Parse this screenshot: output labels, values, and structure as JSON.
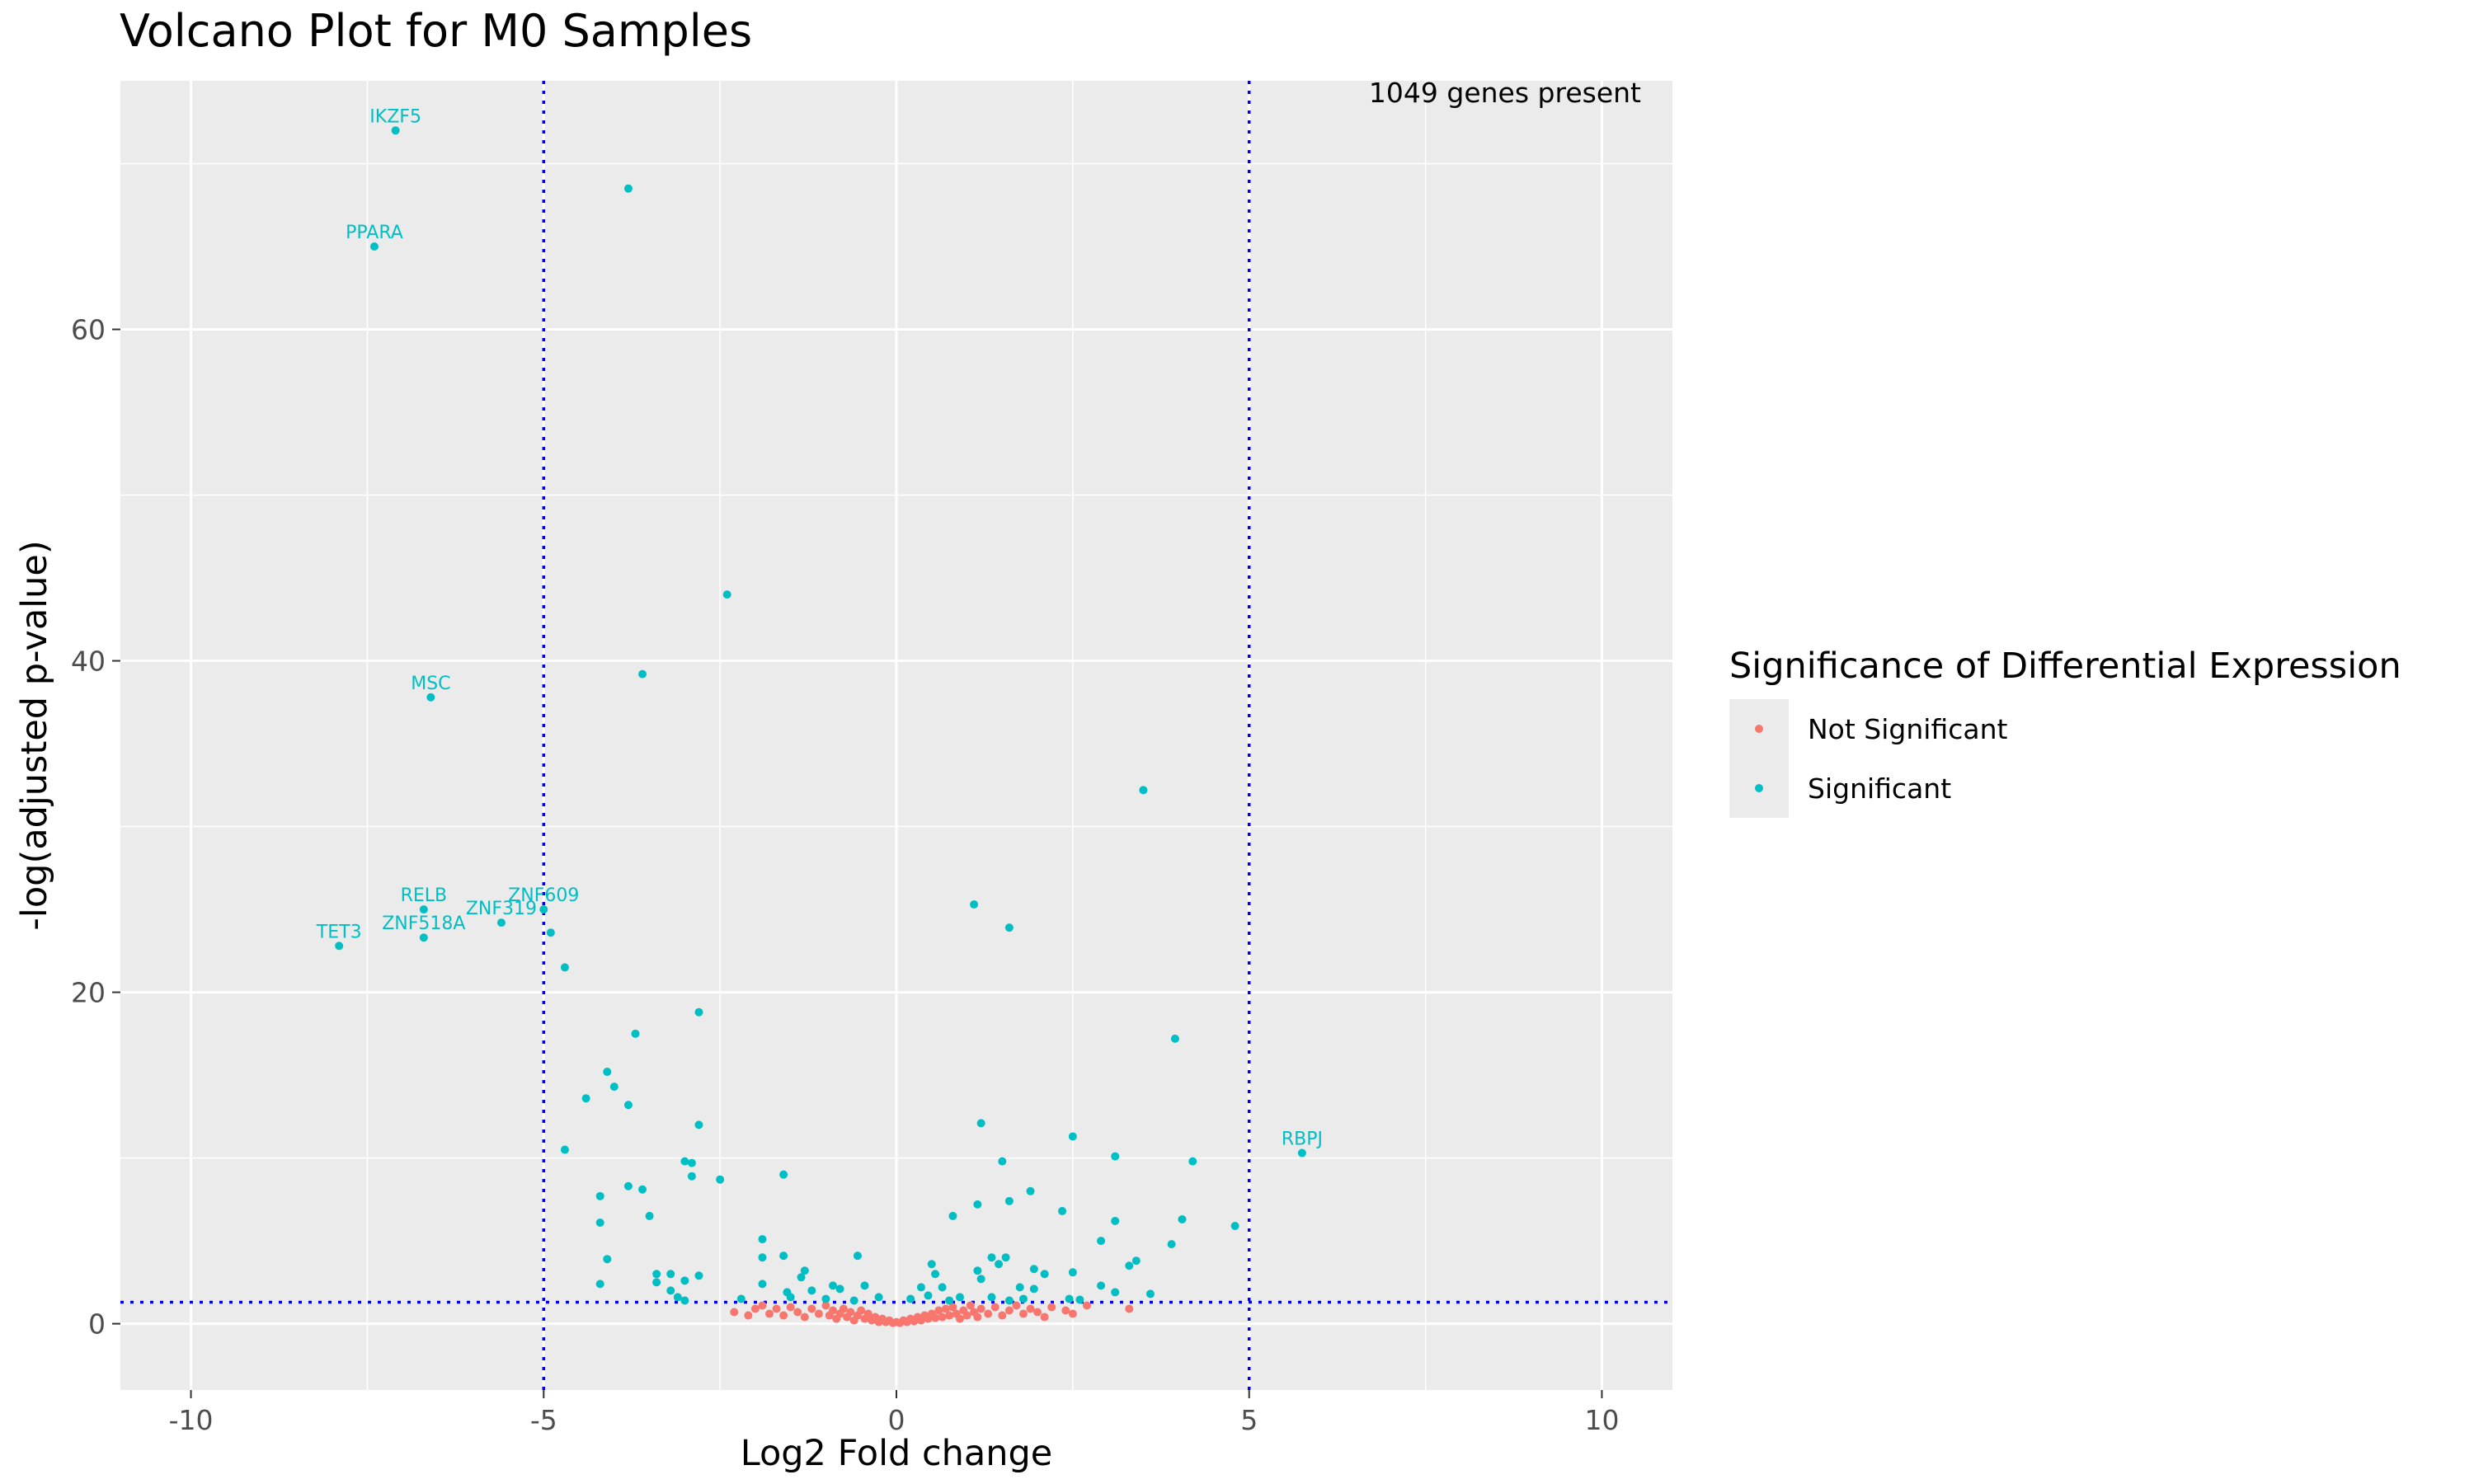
{
  "chart_data": {
    "type": "scatter",
    "title": "Volcano Plot for M0 Samples",
    "xlabel": "Log2 Fold change",
    "ylabel": "-log(adjusted p-value)",
    "xlim": [
      -11,
      11
    ],
    "ylim": [
      -4,
      75
    ],
    "x_ticks": [
      -10,
      -5,
      0,
      5,
      10
    ],
    "y_ticks": [
      0,
      20,
      40,
      60
    ],
    "grid": true,
    "panel_background": "#ebebeb",
    "annotation": "1049 genes present",
    "thresholds": {
      "x": [
        -5,
        5
      ],
      "y": 1.3,
      "color": "#0000ee",
      "style": "dotted"
    },
    "legend": {
      "title": "Significance of Differential Expression",
      "position": "right",
      "items": [
        {
          "label": "Not Significant",
          "color": "#f8766d"
        },
        {
          "label": "Significant",
          "color": "#00bfc4"
        }
      ]
    },
    "series": [
      {
        "name": "Not Significant",
        "color": "#f8766d",
        "points": [
          [
            -2.3,
            0.7
          ],
          [
            -2.1,
            0.5
          ],
          [
            -2.0,
            0.9
          ],
          [
            -1.9,
            1.1
          ],
          [
            -1.8,
            0.6
          ],
          [
            -1.7,
            0.9
          ],
          [
            -1.6,
            0.5
          ],
          [
            -1.5,
            1.0
          ],
          [
            -1.4,
            0.7
          ],
          [
            -1.3,
            0.4
          ],
          [
            -1.2,
            0.9
          ],
          [
            -1.1,
            0.6
          ],
          [
            -1.0,
            1.1
          ],
          [
            -0.95,
            0.5
          ],
          [
            -0.9,
            0.8
          ],
          [
            -0.85,
            0.3
          ],
          [
            -0.8,
            0.6
          ],
          [
            -0.75,
            0.9
          ],
          [
            -0.7,
            0.4
          ],
          [
            -0.65,
            0.7
          ],
          [
            -0.6,
            0.2
          ],
          [
            -0.55,
            0.5
          ],
          [
            -0.5,
            0.8
          ],
          [
            -0.45,
            0.3
          ],
          [
            -0.4,
            0.6
          ],
          [
            -0.35,
            0.2
          ],
          [
            -0.3,
            0.4
          ],
          [
            -0.25,
            0.1
          ],
          [
            -0.2,
            0.3
          ],
          [
            -0.15,
            0.1
          ],
          [
            -0.1,
            0.2
          ],
          [
            -0.05,
            0.05
          ],
          [
            0.0,
            0.1
          ],
          [
            0.05,
            0.05
          ],
          [
            0.1,
            0.2
          ],
          [
            0.15,
            0.1
          ],
          [
            0.2,
            0.3
          ],
          [
            0.25,
            0.15
          ],
          [
            0.3,
            0.4
          ],
          [
            0.35,
            0.2
          ],
          [
            0.4,
            0.5
          ],
          [
            0.45,
            0.3
          ],
          [
            0.5,
            0.6
          ],
          [
            0.55,
            0.35
          ],
          [
            0.6,
            0.8
          ],
          [
            0.65,
            0.4
          ],
          [
            0.7,
            0.9
          ],
          [
            0.75,
            0.5
          ],
          [
            0.8,
            1.0
          ],
          [
            0.85,
            0.6
          ],
          [
            0.9,
            0.3
          ],
          [
            0.95,
            0.8
          ],
          [
            1.0,
            0.5
          ],
          [
            1.05,
            1.1
          ],
          [
            1.1,
            0.7
          ],
          [
            1.15,
            0.4
          ],
          [
            1.2,
            0.9
          ],
          [
            1.3,
            0.6
          ],
          [
            1.4,
            1.0
          ],
          [
            1.5,
            0.5
          ],
          [
            1.6,
            0.8
          ],
          [
            1.7,
            1.1
          ],
          [
            1.8,
            0.6
          ],
          [
            1.9,
            0.9
          ],
          [
            2.0,
            0.7
          ],
          [
            2.1,
            0.4
          ],
          [
            2.2,
            1.0
          ],
          [
            2.4,
            0.8
          ],
          [
            2.5,
            0.6
          ],
          [
            2.7,
            1.1
          ],
          [
            3.3,
            0.9
          ]
        ]
      },
      {
        "name": "Significant",
        "color": "#00bfc4",
        "points": [
          [
            -7.1,
            72.0,
            "IKZF5"
          ],
          [
            -7.4,
            65.0,
            "PPARA"
          ],
          [
            -6.6,
            37.8,
            "MSC"
          ],
          [
            -6.7,
            25.0,
            "RELB"
          ],
          [
            -5.0,
            25.0,
            "ZNF609"
          ],
          [
            -5.6,
            24.2,
            "ZNF319"
          ],
          [
            -6.7,
            23.3,
            "ZNF518A"
          ],
          [
            -7.9,
            22.8,
            "TET3"
          ],
          [
            5.75,
            10.3,
            "RBPJ"
          ],
          [
            -3.8,
            68.5
          ],
          [
            -2.4,
            44.0
          ],
          [
            -3.6,
            39.2
          ],
          [
            3.5,
            32.2
          ],
          [
            1.1,
            25.3
          ],
          [
            1.6,
            23.9
          ],
          [
            -4.9,
            23.6
          ],
          [
            -4.7,
            21.5
          ],
          [
            -2.8,
            18.8
          ],
          [
            -3.7,
            17.5
          ],
          [
            3.95,
            17.2
          ],
          [
            -4.1,
            15.2
          ],
          [
            -4.0,
            14.3
          ],
          [
            -4.4,
            13.6
          ],
          [
            -3.8,
            13.2
          ],
          [
            1.2,
            12.1
          ],
          [
            -2.8,
            12.0
          ],
          [
            2.5,
            11.3
          ],
          [
            -4.7,
            10.5
          ],
          [
            3.1,
            10.1
          ],
          [
            4.2,
            9.8
          ],
          [
            -3.0,
            9.8
          ],
          [
            -2.9,
            9.7
          ],
          [
            1.5,
            9.8
          ],
          [
            -2.9,
            8.9
          ],
          [
            -1.6,
            9.0
          ],
          [
            -2.5,
            8.7
          ],
          [
            -3.8,
            8.3
          ],
          [
            -3.6,
            8.1
          ],
          [
            1.9,
            8.0
          ],
          [
            -4.2,
            7.7
          ],
          [
            1.6,
            7.4
          ],
          [
            1.15,
            7.2
          ],
          [
            2.35,
            6.8
          ],
          [
            0.8,
            6.5
          ],
          [
            -3.5,
            6.5
          ],
          [
            4.05,
            6.3
          ],
          [
            3.1,
            6.2
          ],
          [
            -4.2,
            6.1
          ],
          [
            4.8,
            5.9
          ],
          [
            -1.9,
            5.1
          ],
          [
            2.9,
            5.0
          ],
          [
            3.9,
            4.8
          ],
          [
            -1.6,
            4.1
          ],
          [
            -0.55,
            4.1
          ],
          [
            1.35,
            4.0
          ],
          [
            1.55,
            4.0
          ],
          [
            -1.9,
            4.0
          ],
          [
            -4.1,
            3.9
          ],
          [
            3.4,
            3.8
          ],
          [
            1.45,
            3.6
          ],
          [
            3.3,
            3.5
          ],
          [
            0.5,
            3.6
          ],
          [
            1.95,
            3.3
          ],
          [
            -1.3,
            3.2
          ],
          [
            2.5,
            3.1
          ],
          [
            1.15,
            3.2
          ],
          [
            -3.4,
            3.0
          ],
          [
            -3.2,
            3.0
          ],
          [
            -2.8,
            2.9
          ],
          [
            2.1,
            3.0
          ],
          [
            0.55,
            3.0
          ],
          [
            -1.35,
            2.8
          ],
          [
            1.2,
            2.7
          ],
          [
            -3.4,
            2.5
          ],
          [
            -3.0,
            2.6
          ],
          [
            -4.2,
            2.4
          ],
          [
            -1.9,
            2.4
          ],
          [
            -0.45,
            2.3
          ],
          [
            -0.9,
            2.3
          ],
          [
            0.35,
            2.2
          ],
          [
            0.65,
            2.2
          ],
          [
            1.75,
            2.2
          ],
          [
            1.95,
            2.1
          ],
          [
            2.9,
            2.3
          ],
          [
            -3.2,
            2.0
          ],
          [
            -1.2,
            2.0
          ],
          [
            -0.8,
            2.1
          ],
          [
            -1.55,
            1.9
          ],
          [
            3.1,
            1.9
          ],
          [
            3.6,
            1.8
          ],
          [
            -3.1,
            1.6
          ],
          [
            -1.5,
            1.6
          ],
          [
            -0.25,
            1.6
          ],
          [
            0.45,
            1.7
          ],
          [
            0.9,
            1.6
          ],
          [
            1.35,
            1.6
          ],
          [
            -2.2,
            1.5
          ],
          [
            -1.0,
            1.5
          ],
          [
            0.2,
            1.5
          ],
          [
            1.8,
            1.5
          ],
          [
            2.45,
            1.5
          ],
          [
            -3.0,
            1.4
          ],
          [
            -0.6,
            1.4
          ],
          [
            0.75,
            1.4
          ],
          [
            1.6,
            1.4
          ],
          [
            2.6,
            1.45
          ]
        ]
      }
    ]
  }
}
